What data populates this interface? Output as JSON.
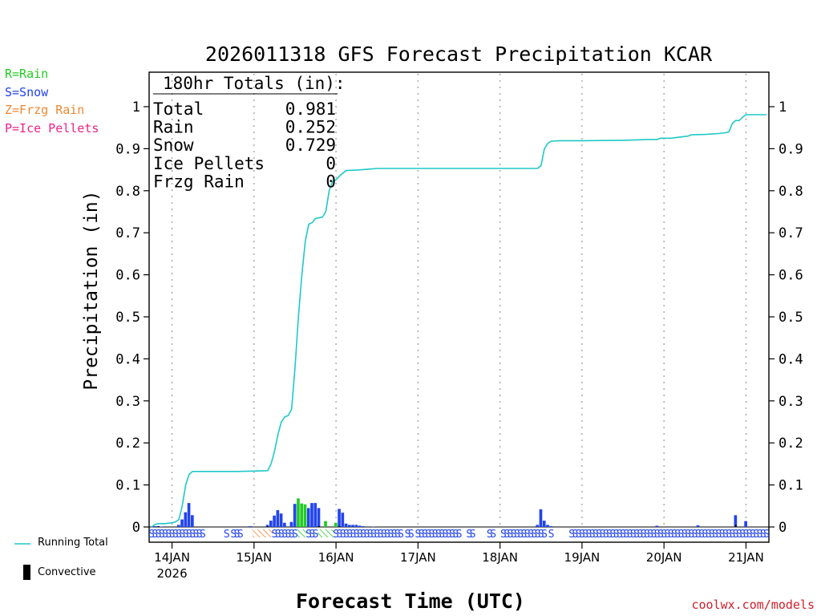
{
  "legend": {
    "rain": {
      "label": "R=Rain",
      "color": "#22cc22"
    },
    "snow": {
      "label": "S=Snow",
      "color": "#2244ee"
    },
    "frzg": {
      "label": "Z=Frzg Rain",
      "color": "#ee8833"
    },
    "ice": {
      "label": "P=Ice Pellets",
      "color": "#ee2288"
    }
  },
  "bottom_legend": {
    "running_total_label": "Running Total",
    "convective_label": "Convective",
    "running_total_color": "#20c8c8"
  },
  "credit": "coolwx.com/models",
  "chart_data": {
    "type": "bar",
    "title": "2026011318 GFS Forecast Precipitation KCAR",
    "xlabel": "Forecast Time (UTC)",
    "ylabel": "Precipitation (in)",
    "ylim": [
      0,
      1.05
    ],
    "yticks": [
      0,
      0.1,
      0.2,
      0.3,
      0.4,
      0.5,
      0.6,
      0.7,
      0.8,
      0.9,
      1
    ],
    "ytick_labels": [
      "0",
      "0.1",
      "0.2",
      "0.3",
      "0.4",
      "0.5",
      "0.6",
      "0.7",
      "0.8",
      "0.9",
      "1"
    ],
    "xlim_hours": [
      0,
      180
    ],
    "xticks": [
      {
        "hour": 6,
        "label": "14JAN",
        "sublabel": "2026"
      },
      {
        "hour": 30,
        "label": "15JAN"
      },
      {
        "hour": 54,
        "label": "16JAN"
      },
      {
        "hour": 78,
        "label": "17JAN"
      },
      {
        "hour": 102,
        "label": "18JAN"
      },
      {
        "hour": 126,
        "label": "19JAN"
      },
      {
        "hour": 150,
        "label": "20JAN"
      },
      {
        "hour": 174,
        "label": "21JAN"
      }
    ],
    "totals_box": {
      "title": "180hr Totals (in):",
      "rows": [
        {
          "label": "Total",
          "value": "0.981"
        },
        {
          "label": "Rain",
          "value": "0.252"
        },
        {
          "label": "Snow",
          "value": "0.729"
        },
        {
          "label": "Ice Pellets",
          "value": "0"
        },
        {
          "label": "Frzg Rain",
          "value": "0"
        }
      ]
    },
    "running_total": {
      "name": "Running Total",
      "points": [
        [
          0,
          0
        ],
        [
          1,
          0.006
        ],
        [
          2,
          0.008
        ],
        [
          4,
          0.008
        ],
        [
          5,
          0.009
        ],
        [
          6,
          0.01
        ],
        [
          7,
          0.012
        ],
        [
          8,
          0.018
        ],
        [
          9,
          0.05
        ],
        [
          10,
          0.1
        ],
        [
          11,
          0.125
        ],
        [
          12,
          0.132
        ],
        [
          15,
          0.132
        ],
        [
          20,
          0.132
        ],
        [
          25,
          0.132
        ],
        [
          30,
          0.133
        ],
        [
          34,
          0.134
        ],
        [
          35,
          0.15
        ],
        [
          36,
          0.18
        ],
        [
          37,
          0.22
        ],
        [
          38,
          0.25
        ],
        [
          39,
          0.262
        ],
        [
          40,
          0.265
        ],
        [
          41,
          0.28
        ],
        [
          42,
          0.38
        ],
        [
          43,
          0.5
        ],
        [
          44,
          0.6
        ],
        [
          45,
          0.68
        ],
        [
          46,
          0.72
        ],
        [
          47,
          0.724
        ],
        [
          48,
          0.734
        ],
        [
          50,
          0.737
        ],
        [
          51,
          0.75
        ],
        [
          52,
          0.8
        ],
        [
          53,
          0.823
        ],
        [
          54,
          0.826
        ],
        [
          55,
          0.835
        ],
        [
          56,
          0.842
        ],
        [
          57,
          0.848
        ],
        [
          60,
          0.849
        ],
        [
          63,
          0.851
        ],
        [
          66,
          0.853
        ],
        [
          78,
          0.853
        ],
        [
          90,
          0.853
        ],
        [
          102,
          0.853
        ],
        [
          113,
          0.853
        ],
        [
          114,
          0.86
        ],
        [
          115,
          0.9
        ],
        [
          116,
          0.913
        ],
        [
          117,
          0.918
        ],
        [
          120,
          0.919
        ],
        [
          126,
          0.919
        ],
        [
          138,
          0.92
        ],
        [
          142,
          0.921
        ],
        [
          145,
          0.922
        ],
        [
          148,
          0.922
        ],
        [
          149,
          0.925
        ],
        [
          152,
          0.925
        ],
        [
          155,
          0.928
        ],
        [
          157,
          0.93
        ],
        [
          158,
          0.933
        ],
        [
          162,
          0.934
        ],
        [
          166,
          0.936
        ],
        [
          168,
          0.938
        ],
        [
          169,
          0.94
        ],
        [
          170,
          0.96
        ],
        [
          171,
          0.967
        ],
        [
          172,
          0.967
        ],
        [
          173,
          0.975
        ],
        [
          174,
          0.981
        ],
        [
          180,
          0.981
        ]
      ]
    },
    "bars": [
      {
        "hour": 1,
        "value": 0.002,
        "type": "S"
      },
      {
        "hour": 2,
        "value": 0.002,
        "type": "S"
      },
      {
        "hour": 3,
        "value": 0.001,
        "type": "S"
      },
      {
        "hour": 8,
        "value": 0.005,
        "type": "S"
      },
      {
        "hour": 9,
        "value": 0.018,
        "type": "S"
      },
      {
        "hour": 10,
        "value": 0.035,
        "type": "S"
      },
      {
        "hour": 11,
        "value": 0.057,
        "type": "S"
      },
      {
        "hour": 12,
        "value": 0.028,
        "type": "S"
      },
      {
        "hour": 29,
        "value": 0.002,
        "type": "S"
      },
      {
        "hour": 34,
        "value": 0.005,
        "type": "S"
      },
      {
        "hour": 35,
        "value": 0.015,
        "type": "S"
      },
      {
        "hour": 36,
        "value": 0.027,
        "type": "S"
      },
      {
        "hour": 37,
        "value": 0.04,
        "type": "S"
      },
      {
        "hour": 38,
        "value": 0.032,
        "type": "S"
      },
      {
        "hour": 39,
        "value": 0.01,
        "type": "S"
      },
      {
        "hour": 41,
        "value": 0.012,
        "type": "S"
      },
      {
        "hour": 42,
        "value": 0.055,
        "type": "S"
      },
      {
        "hour": 43,
        "value": 0.068,
        "type": "R"
      },
      {
        "hour": 44,
        "value": 0.056,
        "type": "R"
      },
      {
        "hour": 45,
        "value": 0.054,
        "type": "R"
      },
      {
        "hour": 46,
        "value": 0.045,
        "type": "S"
      },
      {
        "hour": 47,
        "value": 0.057,
        "type": "S"
      },
      {
        "hour": 48,
        "value": 0.057,
        "type": "S"
      },
      {
        "hour": 49,
        "value": 0.045,
        "type": "S"
      },
      {
        "hour": 51,
        "value": 0.014,
        "type": "R"
      },
      {
        "hour": 54,
        "value": 0.01,
        "type": "R"
      },
      {
        "hour": 55,
        "value": 0.043,
        "type": "S"
      },
      {
        "hour": 56,
        "value": 0.034,
        "type": "S"
      },
      {
        "hour": 57,
        "value": 0.008,
        "type": "S"
      },
      {
        "hour": 58,
        "value": 0.005,
        "type": "S"
      },
      {
        "hour": 59,
        "value": 0.005,
        "type": "S"
      },
      {
        "hour": 60,
        "value": 0.005,
        "type": "S"
      },
      {
        "hour": 61,
        "value": 0.003,
        "type": "S"
      },
      {
        "hour": 62,
        "value": 0.002,
        "type": "S"
      },
      {
        "hour": 65,
        "value": 0.001,
        "type": "S"
      },
      {
        "hour": 113,
        "value": 0.005,
        "type": "S"
      },
      {
        "hour": 114,
        "value": 0.042,
        "type": "S"
      },
      {
        "hour": 115,
        "value": 0.015,
        "type": "S"
      },
      {
        "hour": 116,
        "value": 0.005,
        "type": "S"
      },
      {
        "hour": 117,
        "value": 0.002,
        "type": "S"
      },
      {
        "hour": 148,
        "value": 0.003,
        "type": "S"
      },
      {
        "hour": 160,
        "value": 0.004,
        "type": "S"
      },
      {
        "hour": 171,
        "value": 0.028,
        "type": "S"
      },
      {
        "hour": 174,
        "value": 0.014,
        "type": "S"
      }
    ],
    "convective": [
      {
        "hour": 2,
        "value": 0.002
      },
      {
        "hour": 34,
        "value": 0.002
      },
      {
        "hour": 49,
        "value": 0.002
      },
      {
        "hour": 55,
        "value": 0.002
      },
      {
        "hour": 171,
        "value": 0.005
      }
    ],
    "ptype_strip": [
      {
        "start": 0,
        "end": 5,
        "type": "S",
        "hatch": false
      },
      {
        "start": 6,
        "end": 15,
        "type": "S",
        "hatch": false
      },
      {
        "start": 22,
        "end": 22,
        "type": "S",
        "hatch": false
      },
      {
        "start": 24,
        "end": 26,
        "type": "S",
        "hatch": false
      },
      {
        "start": 30,
        "end": 35,
        "type": "Z",
        "hatch": true
      },
      {
        "start": 36,
        "end": 42,
        "type": "S",
        "hatch": false
      },
      {
        "start": 43,
        "end": 45,
        "type": "R",
        "hatch": true
      },
      {
        "start": 46,
        "end": 48,
        "type": "S",
        "hatch": false
      },
      {
        "start": 49,
        "end": 53,
        "type": "R",
        "hatch": true
      },
      {
        "start": 54,
        "end": 73,
        "type": "S",
        "hatch": false
      },
      {
        "start": 75,
        "end": 76,
        "type": "S",
        "hatch": false
      },
      {
        "start": 78,
        "end": 90,
        "type": "S",
        "hatch": false
      },
      {
        "start": 93,
        "end": 94,
        "type": "S",
        "hatch": false
      },
      {
        "start": 99,
        "end": 100,
        "type": "S",
        "hatch": false
      },
      {
        "start": 103,
        "end": 115,
        "type": "S",
        "hatch": false
      },
      {
        "start": 117,
        "end": 117,
        "type": "S",
        "hatch": false
      },
      {
        "start": 123,
        "end": 180,
        "type": "S",
        "hatch": false
      }
    ]
  }
}
